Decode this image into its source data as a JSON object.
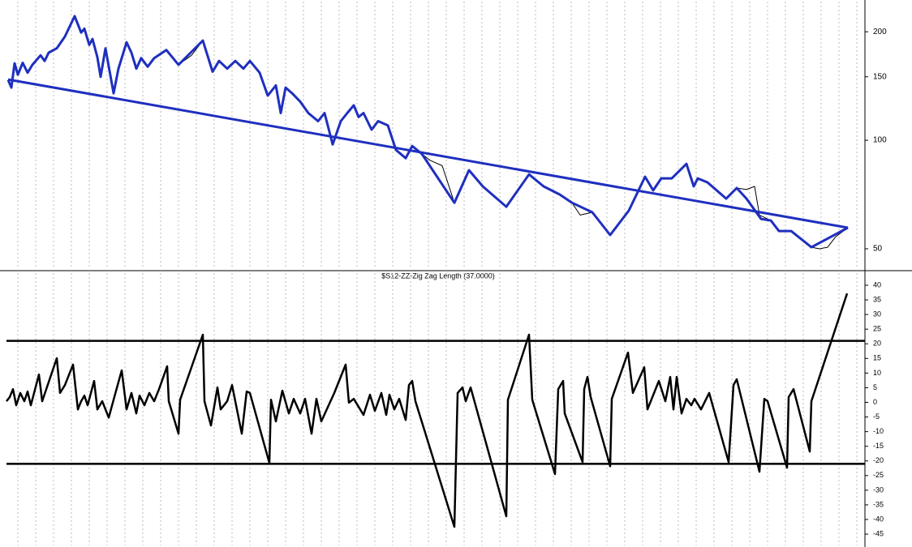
{
  "chart_data": [
    {
      "type": "line",
      "log": true,
      "ylim": [
        43.7,
        245
      ],
      "yticks": [
        50,
        100,
        150,
        200
      ],
      "xlim": [
        0,
        1066
      ],
      "xticks": [
        22,
        44,
        66,
        88,
        110,
        132,
        154,
        176,
        198,
        220,
        242,
        264,
        286,
        308,
        330,
        352,
        374,
        396,
        418,
        440,
        462,
        484,
        506,
        528,
        550,
        572,
        594,
        616,
        638,
        660,
        682,
        704,
        726,
        748,
        770,
        792,
        814,
        836,
        858,
        880,
        902,
        924,
        946,
        968,
        990,
        1012,
        1034,
        1056
      ],
      "series": [
        {
          "color": "#000000",
          "width": 1,
          "x": [
            10,
            14,
            18,
            22,
            28,
            34,
            40,
            50,
            55,
            60,
            70,
            80,
            92,
            100,
            104,
            110,
            114,
            120,
            124,
            130,
            140,
            146,
            156,
            162,
            168,
            174,
            182,
            190,
            205,
            220,
            236,
            250,
            262,
            270,
            280,
            290,
            300,
            308,
            320,
            330,
            340,
            346,
            352,
            360,
            370,
            380,
            392,
            400,
            410,
            420,
            428,
            436,
            442,
            448,
            458,
            466,
            478,
            488,
            500,
            508,
            520,
            530,
            545,
            560,
            578,
            595,
            624,
            652,
            670,
            690,
            705,
            715,
            730,
            752,
            775,
            795,
            805,
            815,
            828,
            846,
            855,
            860,
            872,
            895,
            908,
            920,
            930,
            936,
            950,
            960,
            975,
            1000,
            1010,
            1020,
            1030,
            1045
          ],
          "values": [
            147,
            140,
            163.5,
            152,
            164,
            154,
            162,
            172,
            166,
            175,
            180,
            194,
            221,
            199,
            204,
            184,
            191,
            170,
            150,
            180,
            135,
            158,
            187,
            175,
            158,
            169,
            160,
            169,
            178,
            162,
            172,
            189,
            155,
            166,
            158,
            166,
            158,
            166,
            154,
            133,
            142,
            119,
            140,
            135,
            128,
            119,
            113,
            119,
            97.4,
            113,
            119,
            125,
            116,
            119,
            107,
            113,
            110,
            94,
            89.2,
            96.4,
            91.6,
            88,
            85,
            67.1,
            82.6,
            74.5,
            65.4,
            80.4,
            74.5,
            70.7,
            67.1,
            62,
            63.1,
            54.6,
            63.8,
            79.2,
            72.6,
            78.4,
            78.4,
            86,
            74.5,
            78.4,
            76.4,
            68.9,
            73.7,
            73,
            74.5,
            62,
            59.9,
            56,
            56,
            50.5,
            50,
            50.5,
            54,
            57.2
          ]
        },
        {
          "color": "#1f2fbf",
          "width": 3,
          "x": [
            10,
            14,
            18,
            22,
            28,
            34,
            40,
            50,
            55,
            60,
            70,
            80,
            92,
            100,
            104,
            110,
            114,
            120,
            124,
            130,
            140,
            146,
            156,
            162,
            168,
            174,
            182,
            190,
            205,
            220,
            250,
            262,
            270,
            280,
            290,
            300,
            308,
            320,
            330,
            340,
            346,
            352,
            360,
            370,
            380,
            392,
            400,
            410,
            420,
            428,
            436,
            442,
            448,
            458,
            466,
            478,
            488,
            500,
            508,
            520,
            560,
            578,
            595,
            624,
            652,
            670,
            690,
            705,
            730,
            752,
            775,
            795,
            805,
            815,
            828,
            846,
            855,
            860,
            872,
            895,
            908,
            920,
            938,
            950,
            960,
            975,
            1000,
            1045
          ],
          "values": [
            147,
            140,
            163.5,
            152,
            164,
            154,
            162,
            172,
            166,
            175,
            180,
            194,
            221,
            199,
            204,
            184,
            191,
            170,
            150,
            180,
            135,
            158,
            187,
            175,
            158,
            169,
            160,
            169,
            178,
            162,
            189,
            155,
            166,
            158,
            166,
            158,
            166,
            154,
            133,
            142,
            119,
            140,
            135,
            128,
            119,
            113,
            119,
            97.4,
            113,
            119,
            125,
            116,
            119,
            107,
            113,
            110,
            94,
            89.2,
            96.4,
            91.6,
            67.1,
            82.6,
            74.5,
            65.4,
            80.4,
            74.5,
            70.7,
            67.1,
            63.1,
            54.6,
            63.8,
            79.2,
            72.6,
            78.4,
            78.4,
            86,
            74.5,
            78.4,
            76.4,
            68.9,
            73.7,
            68.9,
            60.5,
            59.9,
            56,
            56,
            50.5,
            57.2
          ]
        },
        {
          "color": "#1f2fbf",
          "width": 3,
          "x": [
            10,
            1045
          ],
          "values": [
            147.4,
            57.2
          ]
        }
      ]
    },
    {
      "type": "line",
      "title": "$S12-ZZ-Zig Zag Length (37.0000)",
      "ylim": [
        -49.4,
        44.7
      ],
      "yticks": [
        40,
        35,
        30,
        25,
        20,
        15,
        10,
        5,
        0,
        -5,
        -10,
        -15,
        -20,
        -25,
        -30,
        -35,
        -40,
        -45
      ],
      "xlim": [
        0,
        1066
      ],
      "xticks": [
        22,
        44,
        66,
        88,
        110,
        132,
        154,
        176,
        198,
        220,
        242,
        264,
        286,
        308,
        330,
        352,
        374,
        396,
        418,
        440,
        462,
        484,
        506,
        528,
        550,
        572,
        594,
        616,
        638,
        660,
        682,
        704,
        726,
        748,
        770,
        792,
        814,
        836,
        858,
        880,
        902,
        924,
        946,
        968,
        990,
        1012,
        1034,
        1056
      ],
      "levels": [
        21,
        -21
      ],
      "series": [
        {
          "color": "#000000",
          "width": 2.5,
          "x": [
            8,
            12,
            16,
            20,
            25,
            30,
            34,
            38,
            48,
            52,
            70,
            74,
            80,
            90,
            96,
            100,
            104,
            108,
            116,
            120,
            126,
            134,
            140,
            150,
            156,
            162,
            168,
            172,
            178,
            184,
            190,
            196,
            206,
            208,
            220,
            222,
            250,
            252,
            260,
            268,
            272,
            280,
            286,
            298,
            304,
            308,
            332,
            334,
            340,
            348,
            356,
            362,
            370,
            376,
            384,
            390,
            396,
            412,
            426,
            430,
            436,
            448,
            456,
            462,
            470,
            476,
            480,
            486,
            492,
            500,
            504,
            508,
            512,
            560,
            564,
            570,
            574,
            580,
            624,
            626,
            652,
            656,
            684,
            688,
            694,
            696,
            718,
            720,
            724,
            728,
            752,
            754,
            774,
            780,
            794,
            798,
            812,
            820,
            826,
            830,
            834,
            840,
            846,
            852,
            856,
            864,
            874,
            898,
            904,
            908,
            936,
            942,
            946,
            970,
            972,
            978,
            998,
            1000,
            1044
          ],
          "values": [
            0.4,
            1.8,
            4.5,
            -1,
            3.2,
            0.4,
            3.7,
            -1,
            9.5,
            0.4,
            15.1,
            3.2,
            5.9,
            12.9,
            -2.4,
            0.4,
            2.3,
            -1,
            7.3,
            -2.4,
            0.4,
            -5.2,
            0.9,
            10.9,
            -2.4,
            3.2,
            -3.8,
            2.3,
            -1,
            3.2,
            0.4,
            4.5,
            12.3,
            0.4,
            -10.7,
            0.9,
            23.1,
            0.4,
            -7.9,
            5.1,
            -2.4,
            0.4,
            5.9,
            -10.7,
            3.7,
            3.2,
            -20.7,
            0.9,
            -6.5,
            4,
            -3.8,
            1.2,
            -3.8,
            1.2,
            -10.7,
            1.2,
            -6.5,
            3.2,
            12.9,
            -0.1,
            1.2,
            -4.3,
            2.6,
            -2.9,
            3.2,
            -4.3,
            2.6,
            -2.4,
            1.2,
            -6,
            5.9,
            7.3,
            0.4,
            -42.5,
            3.2,
            5.1,
            0.4,
            5.1,
            -38.9,
            0.9,
            23.1,
            0.9,
            -24.5,
            4.5,
            7.3,
            -3.8,
            -20.4,
            4.5,
            8.7,
            1.8,
            -21.8,
            1.2,
            17,
            3.2,
            12,
            -2.4,
            7.3,
            0.4,
            8.7,
            -2.4,
            8.7,
            -3.8,
            1.2,
            -1,
            1.2,
            -2.4,
            3.2,
            -20.4,
            5.9,
            7.9,
            -23.7,
            1.2,
            0.4,
            -22.3,
            1.8,
            4.5,
            -16.8,
            0.4,
            37.2
          ]
        }
      ]
    }
  ]
}
